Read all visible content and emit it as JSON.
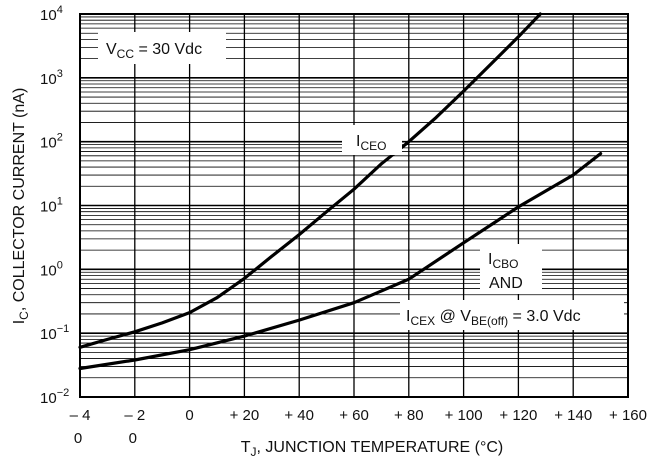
{
  "chart_data": {
    "type": "line",
    "title": "",
    "xlabel": {
      "main": "T",
      "sub": "J",
      "rest": ", JUNCTION TEMPERATURE (°C)"
    },
    "ylabel": {
      "main": "I",
      "sub": "C",
      "rest": ", COLLECTOR CURRENT (nA)"
    },
    "xlim": [
      -40,
      160
    ],
    "ylim": [
      0.01,
      10000
    ],
    "yscale": "log",
    "grid": true,
    "x_ticks": [
      {
        "value": -40,
        "line1": "– 4",
        "line2": "0"
      },
      {
        "value": -20,
        "line1": "– 2",
        "line2": "0"
      },
      {
        "value": 0,
        "line1": "0",
        "line2": ""
      },
      {
        "value": 20,
        "line1": "+ 20",
        "line2": ""
      },
      {
        "value": 40,
        "line1": "+ 40",
        "line2": ""
      },
      {
        "value": 60,
        "line1": "+ 60",
        "line2": ""
      },
      {
        "value": 80,
        "line1": "+ 80",
        "line2": ""
      },
      {
        "value": 100,
        "line1": "+ 100",
        "line2": ""
      },
      {
        "value": 120,
        "line1": "+ 120",
        "line2": ""
      },
      {
        "value": 140,
        "line1": "+ 140",
        "line2": ""
      },
      {
        "value": 160,
        "line1": "+ 160",
        "line2": ""
      }
    ],
    "y_ticks": [
      {
        "value": 0.01,
        "base": "10",
        "exp": "−2"
      },
      {
        "value": 0.1,
        "base": "10",
        "exp": "−1"
      },
      {
        "value": 1,
        "base": "10",
        "exp": "0"
      },
      {
        "value": 10,
        "base": "10",
        "exp": "1"
      },
      {
        "value": 100,
        "base": "10",
        "exp": "2"
      },
      {
        "value": 1000,
        "base": "10",
        "exp": "3"
      },
      {
        "value": 10000,
        "base": "10",
        "exp": "4"
      }
    ],
    "series": [
      {
        "x": [
          -40,
          -30,
          -20,
          -10,
          0,
          10,
          20,
          30,
          40,
          50,
          60,
          70,
          80,
          90,
          100,
          110,
          120,
          128
        ],
        "y": [
          0.06,
          0.08,
          0.105,
          0.145,
          0.21,
          0.36,
          0.72,
          1.6,
          3.5,
          8,
          18,
          45,
          100,
          240,
          620,
          1650,
          4400,
          10000
        ]
      },
      {
        "x": [
          -40,
          -20,
          0,
          20,
          40,
          60,
          80,
          100,
          120,
          140,
          150
        ],
        "y": [
          0.028,
          0.038,
          0.055,
          0.09,
          0.16,
          0.3,
          0.7,
          2.6,
          9.5,
          30,
          65
        ]
      }
    ],
    "annotations": {
      "vcc": {
        "main": "V",
        "sub": "CC",
        "rest": " = 30 Vdc"
      },
      "iceo": {
        "main": "I",
        "sub": "CEO"
      },
      "icbo": {
        "main": "I",
        "sub": "CBO"
      },
      "and": "AND",
      "icex": {
        "main": "I",
        "sub": "CEX",
        "mid": " @ V",
        "sub2": "BE(off)",
        "rest": " = 3.0 Vdc"
      }
    }
  }
}
